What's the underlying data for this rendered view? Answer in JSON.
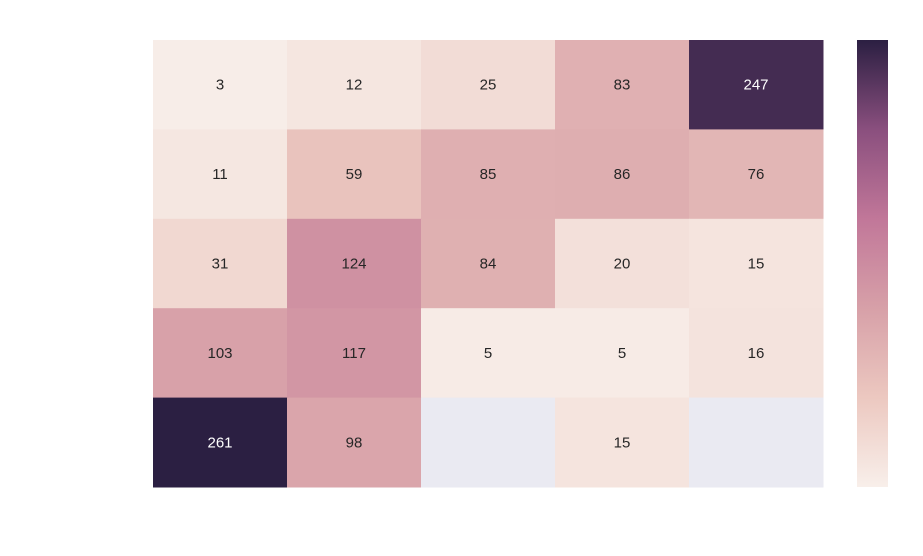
{
  "chart_data": {
    "type": "heatmap",
    "title": "",
    "xlabel": "",
    "ylabel": "",
    "x_categories": [
      "",
      "",
      "",
      "",
      ""
    ],
    "y_categories": [
      "",
      "",
      "",
      "",
      ""
    ],
    "values": [
      [
        3,
        12,
        25,
        83,
        247
      ],
      [
        11,
        59,
        85,
        86,
        76
      ],
      [
        31,
        124,
        84,
        20,
        15
      ],
      [
        103,
        117,
        5,
        5,
        16
      ],
      [
        261,
        98,
        null,
        15,
        null
      ]
    ],
    "value_range": [
      0,
      261
    ],
    "colorbar": {
      "ticks": [],
      "position": "right"
    },
    "missing_color": "#eaeaf2",
    "colormap": [
      "#f8efea",
      "#ecc8c0",
      "#d7a0a8",
      "#c17799",
      "#8a4f7e",
      "#2b1f42"
    ]
  }
}
